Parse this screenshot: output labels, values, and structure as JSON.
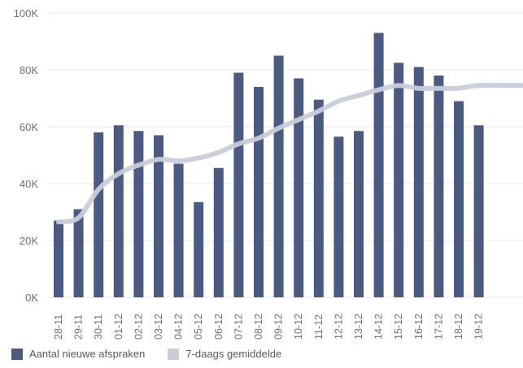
{
  "chart_data": {
    "type": "bar",
    "categories": [
      "28-11",
      "29-11",
      "30-11",
      "01-12",
      "02-12",
      "03-12",
      "04-12",
      "05-12",
      "06-12",
      "07-12",
      "08-12",
      "09-12",
      "10-12",
      "11-12",
      "12-12",
      "13-12",
      "14-12",
      "15-12",
      "16-12",
      "17-12",
      "18-12",
      "19-12"
    ],
    "series": [
      {
        "name": "Aantal nieuwe afspraken",
        "type": "bar",
        "color": "#4a5a80",
        "values": [
          27000,
          31000,
          58000,
          60500,
          58500,
          57000,
          47000,
          33500,
          45500,
          79000,
          74000,
          85000,
          77000,
          69500,
          56500,
          58500,
          93000,
          82500,
          81000,
          78000,
          69000,
          60500
        ]
      },
      {
        "name": "7-daags gemiddelde",
        "type": "line",
        "color": "#c9cdd8",
        "values": [
          26500,
          28000,
          38000,
          43500,
          46500,
          48500,
          48000,
          49000,
          51000,
          54000,
          56000,
          59500,
          62500,
          65500,
          69000,
          71000,
          73000,
          74500,
          73500,
          73500,
          73500,
          74500
        ]
      }
    ],
    "y_ticks": [
      "0K",
      "20K",
      "40K",
      "60K",
      "80K",
      "100K"
    ],
    "ylim": [
      0,
      100000
    ],
    "grid": true,
    "legend_position": "bottom-left"
  }
}
